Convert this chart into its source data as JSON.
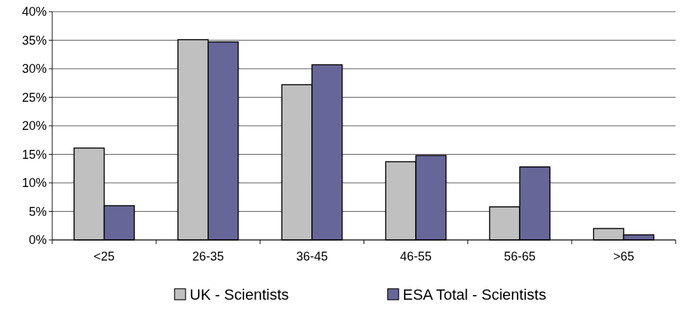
{
  "chart_data": {
    "type": "bar",
    "categories": [
      "<25",
      "26-35",
      "36-45",
      "46-55",
      "56-65",
      ">65"
    ],
    "series": [
      {
        "name": "UK - Scientists",
        "color": "#c0c0c0",
        "values": [
          16.1,
          35.1,
          27.2,
          13.7,
          5.8,
          2.0
        ]
      },
      {
        "name": "ESA Total - Scientists",
        "color": "#666699",
        "values": [
          6.0,
          34.7,
          30.7,
          14.8,
          12.8,
          0.9
        ]
      }
    ],
    "ylim": [
      0,
      40
    ],
    "yticks": [
      {
        "value": 0,
        "label": "0%"
      },
      {
        "value": 5,
        "label": "5%"
      },
      {
        "value": 10,
        "label": "10%"
      },
      {
        "value": 15,
        "label": "15%"
      },
      {
        "value": 20,
        "label": "20%"
      },
      {
        "value": 25,
        "label": "25%"
      },
      {
        "value": 30,
        "label": "30%"
      },
      {
        "value": 35,
        "label": "35%"
      },
      {
        "value": 40,
        "label": "40%"
      }
    ],
    "grid": "y",
    "legend": "bottom"
  }
}
